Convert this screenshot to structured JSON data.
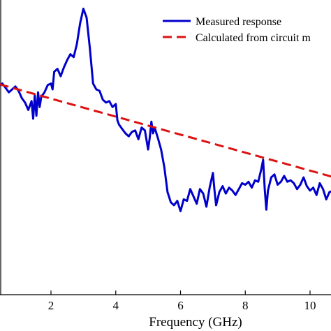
{
  "chart_data": {
    "type": "line",
    "title": "",
    "xlabel": "Frequency (GHz)",
    "ylabel": "",
    "xlim": [
      0,
      10.75
    ],
    "ylim": [
      0,
      10
    ],
    "x_ticks": [
      2,
      4,
      6,
      8,
      10
    ],
    "grid": false,
    "legend_position": "top-right",
    "series": [
      {
        "name": "Measured response",
        "color": "#0000cc",
        "style": "solid",
        "x": [
          0.0,
          0.15,
          0.3,
          0.5,
          0.7,
          0.9,
          1.0,
          1.1,
          1.2,
          1.3,
          1.4,
          1.45,
          1.5,
          1.55,
          1.6,
          1.65,
          1.7,
          1.8,
          1.9,
          2.0,
          2.05,
          2.1,
          2.2,
          2.3,
          2.4,
          2.5,
          2.6,
          2.7,
          2.8,
          2.9,
          3.0,
          3.1,
          3.2,
          3.3,
          3.4,
          3.5,
          3.6,
          3.7,
          3.8,
          3.9,
          4.0,
          4.05,
          4.1,
          4.2,
          4.3,
          4.4,
          4.5,
          4.6,
          4.7,
          4.8,
          4.9,
          5.0,
          5.05,
          5.1,
          5.15,
          5.2,
          5.3,
          5.4,
          5.5,
          5.6,
          5.7,
          5.8,
          5.9,
          6.0,
          6.1,
          6.2,
          6.3,
          6.4,
          6.5,
          6.6,
          6.7,
          6.8,
          6.9,
          7.0,
          7.05,
          7.1,
          7.2,
          7.3,
          7.4,
          7.5,
          7.6,
          7.7,
          7.8,
          7.9,
          8.0,
          8.1,
          8.2,
          8.3,
          8.4,
          8.5,
          8.55,
          8.6,
          8.65,
          8.7,
          8.8,
          8.9,
          9.0,
          9.1,
          9.2,
          9.3,
          9.4,
          9.5,
          9.6,
          9.7,
          9.8,
          9.9,
          10.0,
          10.1,
          10.2,
          10.3,
          10.4,
          10.5,
          10.6,
          10.75
        ],
        "y": [
          7.2,
          7.35,
          7.05,
          7.2,
          6.9,
          7.1,
          6.95,
          6.7,
          6.55,
          6.3,
          6.6,
          6.0,
          6.8,
          6.1,
          6.9,
          6.4,
          6.75,
          6.9,
          7.15,
          7.2,
          7.0,
          7.6,
          7.7,
          7.45,
          7.75,
          8.0,
          8.2,
          8.1,
          8.55,
          9.25,
          9.75,
          9.45,
          8.4,
          7.2,
          7.0,
          6.95,
          6.65,
          6.55,
          6.6,
          6.4,
          6.5,
          5.95,
          5.8,
          5.65,
          5.5,
          5.4,
          5.55,
          5.6,
          5.3,
          5.7,
          5.6,
          4.95,
          5.35,
          5.9,
          5.5,
          5.7,
          5.35,
          4.95,
          4.35,
          3.5,
          3.15,
          3.05,
          3.2,
          2.85,
          3.25,
          3.2,
          3.6,
          3.35,
          3.1,
          3.6,
          3.45,
          3.0,
          3.65,
          4.15,
          3.55,
          3.05,
          3.5,
          3.7,
          3.45,
          3.65,
          3.55,
          3.4,
          3.6,
          3.8,
          3.75,
          3.85,
          3.65,
          3.9,
          3.85,
          4.3,
          4.6,
          3.6,
          2.9,
          3.55,
          4.0,
          4.1,
          3.75,
          3.85,
          4.05,
          3.85,
          3.9,
          3.8,
          3.6,
          3.75,
          4.0,
          3.7,
          3.55,
          3.65,
          3.4,
          3.8,
          3.6,
          3.25,
          3.5,
          3.55
        ]
      },
      {
        "name": "Calculated from circuit m",
        "color": "#dd1111",
        "style": "dashed",
        "x": [
          0.0,
          10.75
        ],
        "y": [
          7.3,
          4.0
        ]
      }
    ]
  }
}
